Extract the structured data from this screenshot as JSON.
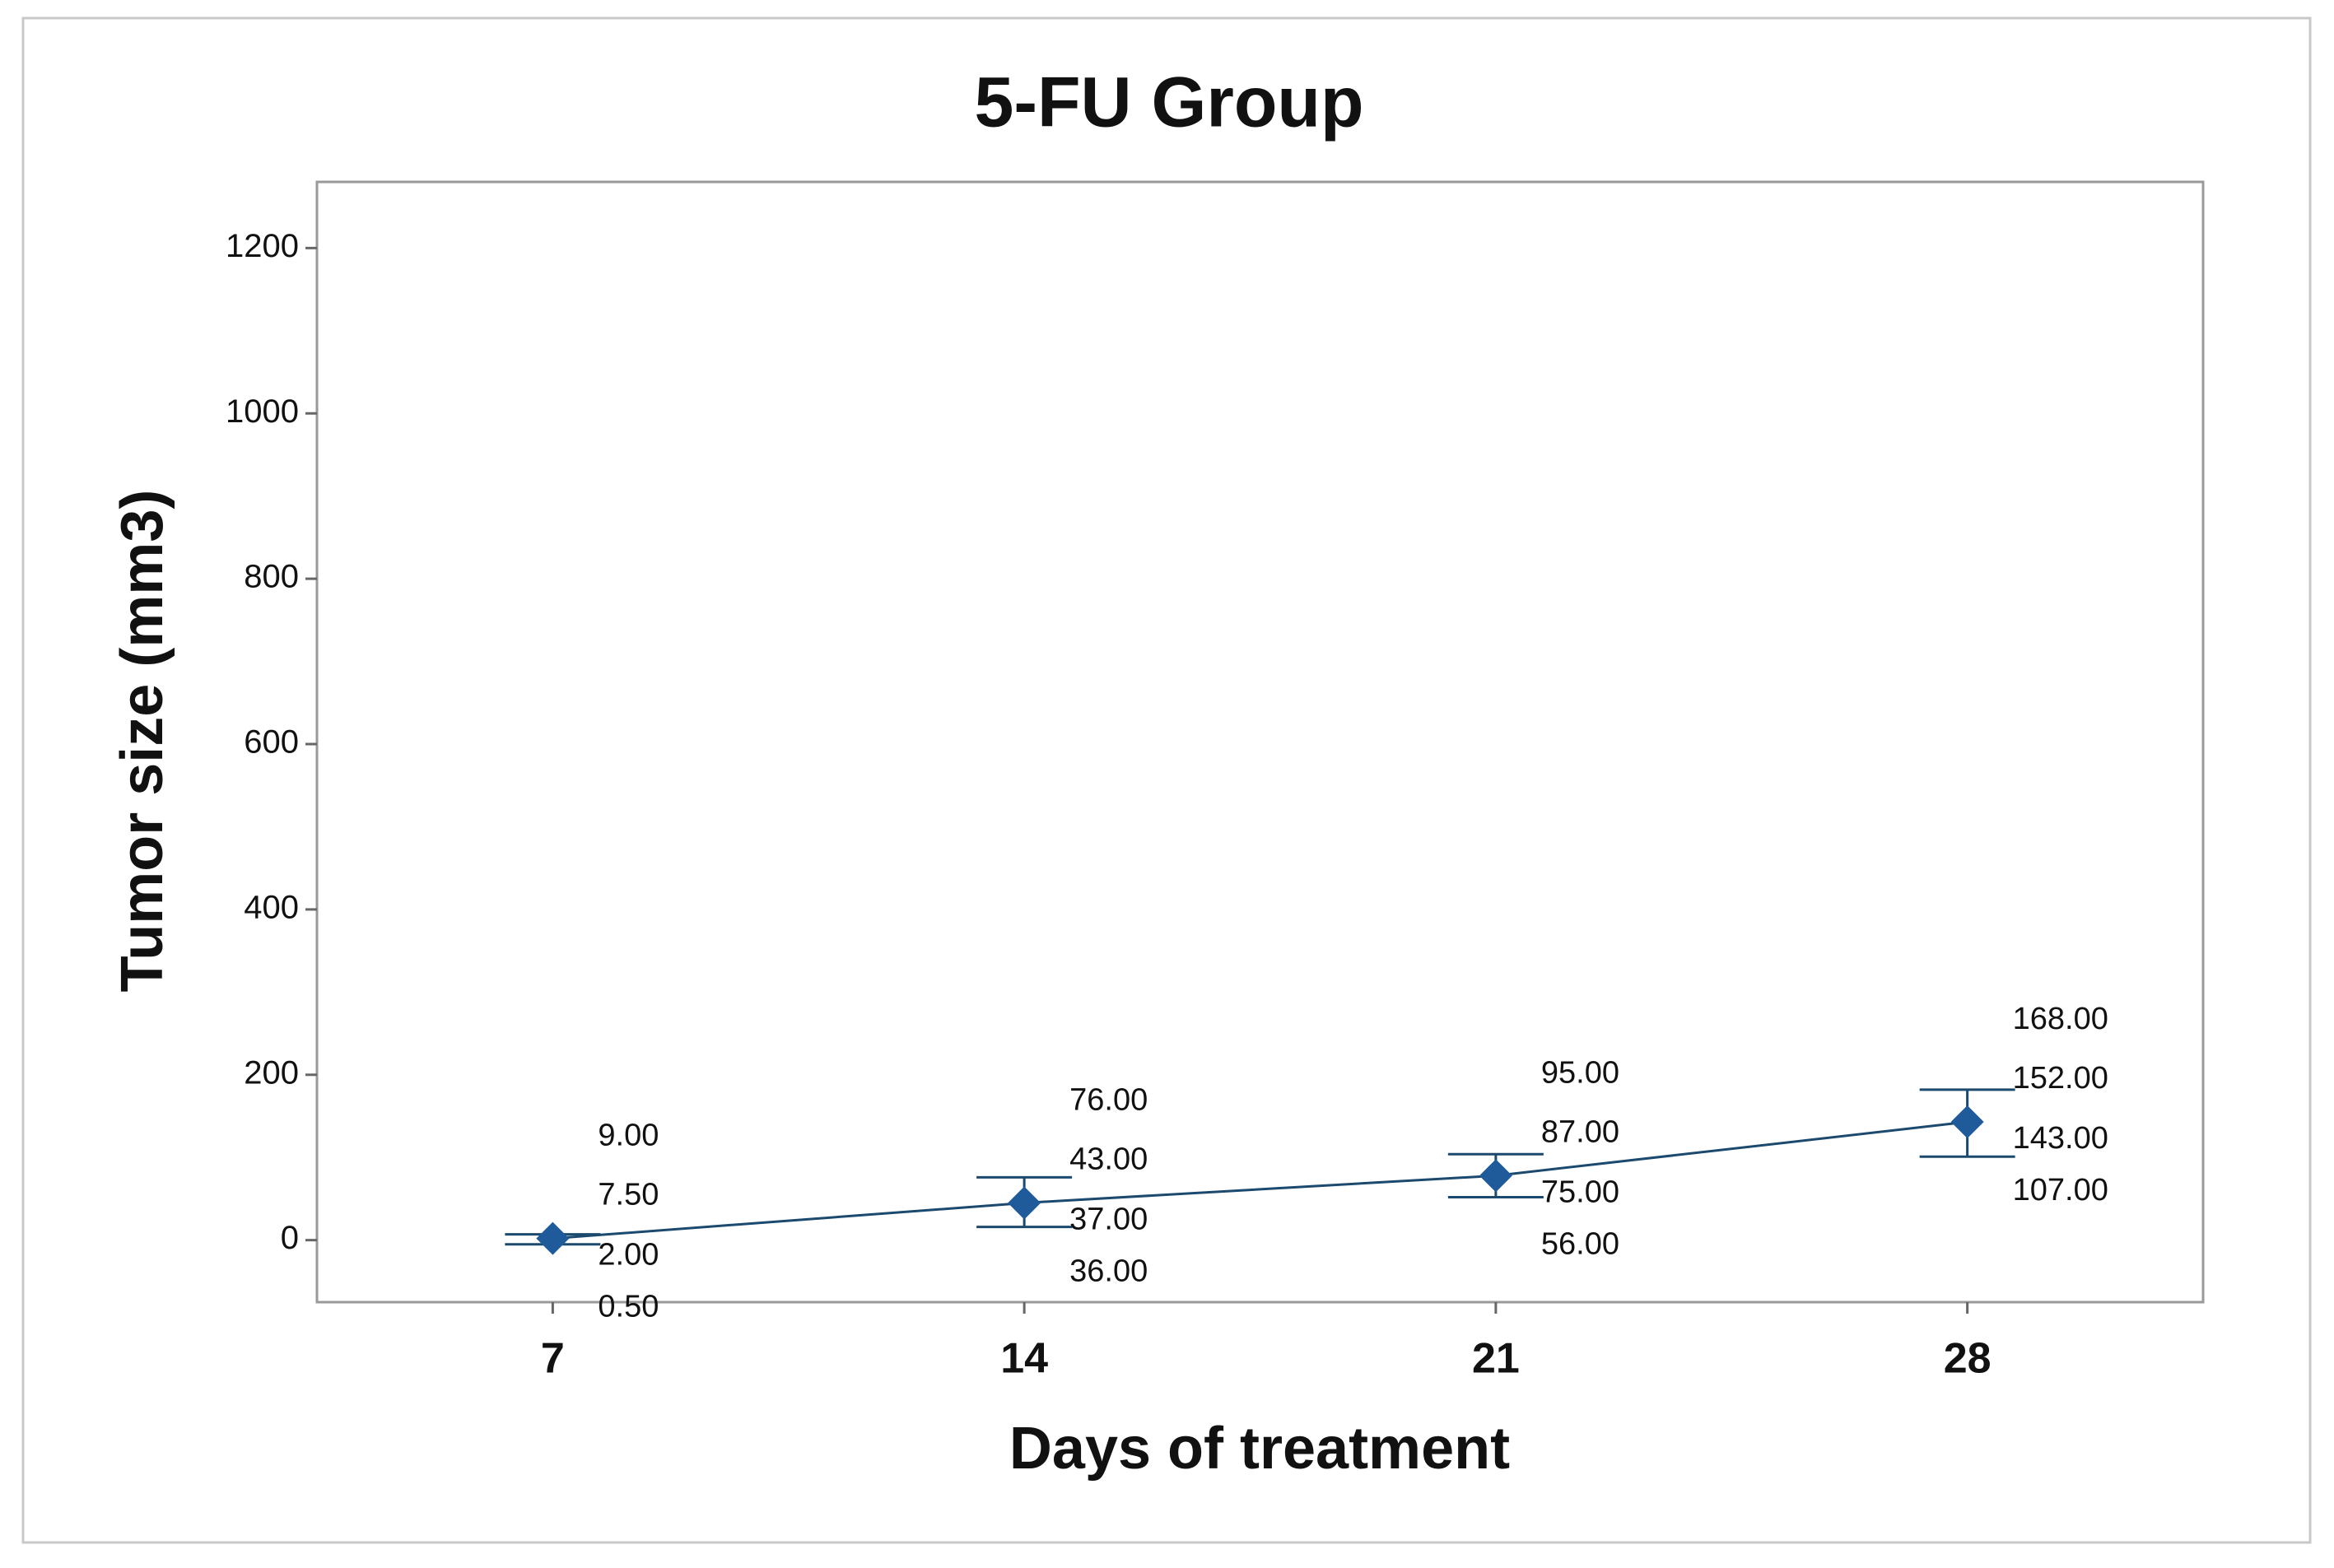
{
  "chart_data": {
    "type": "interval",
    "title": "5-FU Group",
    "x_label": "Days of treatment",
    "y_label": "Tumor size (mm3)",
    "x": [
      7,
      14,
      21,
      28
    ],
    "xlim": [
      3.5,
      31.5
    ],
    "xticks": [
      7,
      14,
      21,
      28
    ],
    "ylim": [
      -75,
      1280
    ],
    "yticks": [
      0,
      200,
      400,
      600,
      800,
      1000,
      1200
    ],
    "color": "#1f5a9b",
    "values": [
      2,
      45,
      78,
      143
    ],
    "upper": [
      7,
      76,
      104,
      182
    ],
    "lower": [
      -5,
      16,
      52,
      101
    ],
    "point_labels": [
      {
        "values": [
          9,
          7.5,
          2,
          0.5
        ],
        "value_labels": [
          "9.00",
          "7.50",
          "2.00",
          "0.50"
        ]
      },
      {
        "values": [
          76,
          43,
          37,
          36
        ],
        "value_labels": [
          "76.00",
          "43.00",
          "37.00",
          "36.00"
        ]
      },
      {
        "values": [
          95,
          87,
          75,
          56
        ],
        "value_labels": [
          "95.00",
          "87.00",
          "75.00",
          "56.00"
        ]
      },
      {
        "values": [
          168,
          152,
          143,
          107
        ],
        "value_labels": [
          "168.00",
          "152.00",
          "143.00",
          "107.00"
        ]
      }
    ]
  }
}
